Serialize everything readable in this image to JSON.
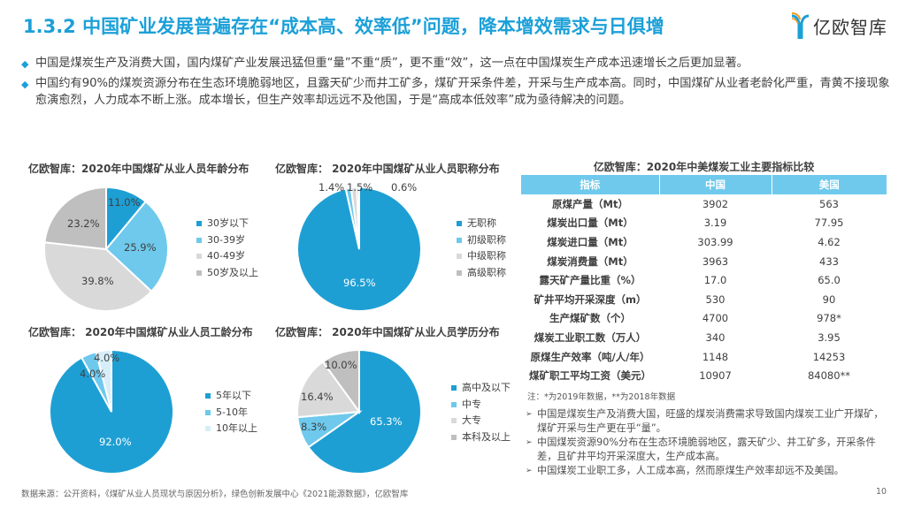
{
  "header": {
    "title": "1.3.2 中国矿业发展普遍存在“成本高、效率低”问题，降本增效需求与日俱增",
    "logo_text": "亿欧智库",
    "accent_color": "#1ca0d8"
  },
  "bullets": [
    "中国是煤炭生产及消费大国，国内煤矿产业发展迅猛但重“量”不重“质”，更不重“效”，这一点在中国煤炭生产成本迅速增长之后更加显著。",
    "中国约有90%的煤炭资源分布在生态环境脆弱地区，且露天矿少而井工矿多，煤矿开采条件差，开采与生产成本高。同时，中国煤矿从业者老龄化严重，青黄不接现象愈演愈烈，人力成本不断上涨。成本增长，但生产效率却远远不及他国，于是“高成本低效率”成为亟待解决的问题。"
  ],
  "chart_data": [
    {
      "type": "pie",
      "title": "亿欧智库：2020年中国煤矿从业人员年龄分布",
      "categories": [
        "30岁以下",
        "30-39岁",
        "40-49岁",
        "50岁及以上"
      ],
      "values": [
        11.0,
        25.9,
        39.8,
        23.2
      ],
      "labels": [
        "11.0%",
        "25.9%",
        "39.8%",
        "23.2%"
      ],
      "colors": [
        "#1e9fd4",
        "#6ec9ec",
        "#d9d9d9",
        "#bfbfbf"
      ],
      "legend_position": "right"
    },
    {
      "type": "pie",
      "title": "亿欧智库： 2020年中国煤矿从业人员职称分布",
      "categories": [
        "无职称",
        "初级职称",
        "中级职称",
        "高级职称"
      ],
      "values": [
        96.5,
        1.4,
        1.5,
        0.6
      ],
      "labels": [
        "96.5%",
        "1.4%",
        "1.5%",
        "0.6%"
      ],
      "colors": [
        "#1e9fd4",
        "#6ec9ec",
        "#d9d9d9",
        "#bfbfbf"
      ],
      "legend_position": "right"
    },
    {
      "type": "pie",
      "title": "亿欧智库： 2020年中国煤矿从业人员工龄分布",
      "categories": [
        "5年以下",
        "5-10年",
        "10年以上"
      ],
      "values": [
        92.0,
        4.0,
        4.0
      ],
      "labels": [
        "92.0%",
        "4.0%",
        "4.0%"
      ],
      "colors": [
        "#1e9fd4",
        "#6ec9ec",
        "#d6eef9"
      ],
      "legend_position": "right"
    },
    {
      "type": "pie",
      "title": "亿欧智库： 2020年中国煤矿从业人员学历分布",
      "categories": [
        "高中及以下",
        "中专",
        "大专",
        "本科及以上"
      ],
      "values": [
        65.3,
        8.3,
        16.4,
        10.0
      ],
      "labels": [
        "65.3%",
        "8.3%",
        "16.4%",
        "10.0%"
      ],
      "colors": [
        "#1e9fd4",
        "#6ec9ec",
        "#d9d9d9",
        "#bfbfbf"
      ],
      "legend_position": "right"
    },
    {
      "type": "table",
      "title": "亿欧智库：2020年中美煤炭工业主要指标比较",
      "columns": [
        "指标",
        "中国",
        "美国"
      ],
      "rows": [
        [
          "原煤产量（Mt）",
          "3902",
          "563"
        ],
        [
          "煤炭出口量（Mt）",
          "3.19",
          "77.95"
        ],
        [
          "煤炭进口量（Mt）",
          "303.99",
          "4.62"
        ],
        [
          "煤炭消费量（Mt）",
          "3963",
          "433"
        ],
        [
          "露天矿产量比重（%）",
          "17.0",
          "65.0"
        ],
        [
          "矿井平均开采深度（m）",
          "530",
          "90"
        ],
        [
          "生产煤矿数（个）",
          "4700",
          "978*"
        ],
        [
          "煤炭工业职工数（万人）",
          "340",
          "3.95"
        ],
        [
          "原煤生产效率（吨/人/年）",
          "1148",
          "14253"
        ],
        [
          "煤矿职工平均工资（美元）",
          "10907",
          "84080**"
        ]
      ]
    }
  ],
  "table": {
    "title": "亿欧智库：2020年中美煤炭工业主要指标比较",
    "header": [
      "指标",
      "中国",
      "美国"
    ],
    "header_color": "#6ec9ec",
    "rows": [
      [
        "原煤产量（Mt）",
        "3902",
        "563"
      ],
      [
        "煤炭出口量（Mt）",
        "3.19",
        "77.95"
      ],
      [
        "煤炭进口量（Mt）",
        "303.99",
        "4.62"
      ],
      [
        "煤炭消费量（Mt）",
        "3963",
        "433"
      ],
      [
        "露天矿产量比重（%）",
        "17.0",
        "65.0"
      ],
      [
        "矿井平均开采深度（m）",
        "530",
        "90"
      ],
      [
        "生产煤矿数（个）",
        "4700",
        "978*"
      ],
      [
        "煤炭工业职工数（万人）",
        "340",
        "3.95"
      ],
      [
        "原煤生产效率（吨/人/年）",
        "1148",
        "14253"
      ],
      [
        "煤矿职工平均工资（美元）",
        "10907",
        "84080**"
      ]
    ],
    "note": "注：*为2019年数据，**为2018年数据"
  },
  "conclusions": [
    "中国是煤炭生产及消费大国，旺盛的煤炭消费需求导致国内煤炭工业广开煤矿，煤矿开采与生产更在乎“量”。",
    "中国煤炭资源90%分布在生态环境脆弱地区，露天矿少、井工矿多，开采条件差，且矿井平均开采深度大，生产成本高。",
    "中国煤炭工业职工多，人工成本高，然而原煤生产效率却远不及美国。"
  ],
  "footer": {
    "source": "数据来源：公开资料，《煤矿从业人员现状与原因分析》，绿色创新发展中心《2021能源数据》，亿欧智库",
    "page": "10"
  }
}
